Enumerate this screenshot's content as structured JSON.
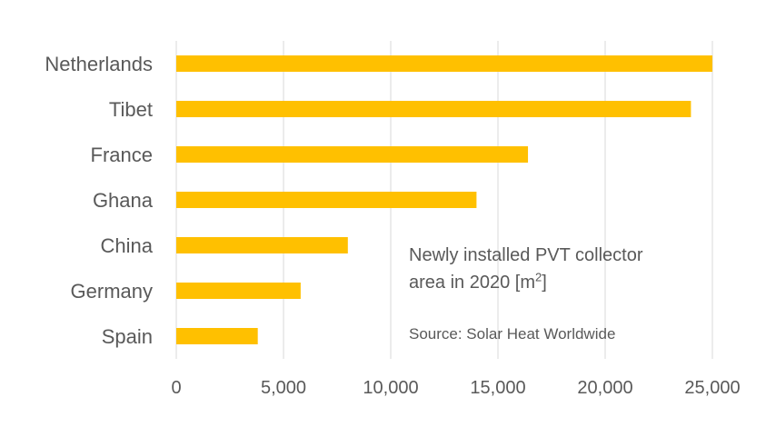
{
  "chart_data": {
    "type": "bar",
    "orientation": "horizontal",
    "title": "",
    "categories": [
      "Netherlands",
      "Tibet",
      "France",
      "Ghana",
      "China",
      "Germany",
      "Spain"
    ],
    "values": [
      25000,
      24000,
      16400,
      14000,
      8000,
      5800,
      3800
    ],
    "xlim": [
      0,
      25000
    ],
    "x_ticks": [
      0,
      5000,
      10000,
      15000,
      20000,
      25000
    ],
    "x_tick_labels": [
      "0",
      "5,000",
      "10,000",
      "15,000",
      "20,000",
      "25,000"
    ],
    "grid": "vertical",
    "bar_color": "#FFC000",
    "grid_color": "#D9D9D9",
    "annotation": {
      "line1": "Newly installed PVT collector",
      "line2_prefix": "area in 2020 [m",
      "line2_sup": "2",
      "line2_suffix": "]",
      "source": "Source: Solar Heat Worldwide"
    }
  }
}
